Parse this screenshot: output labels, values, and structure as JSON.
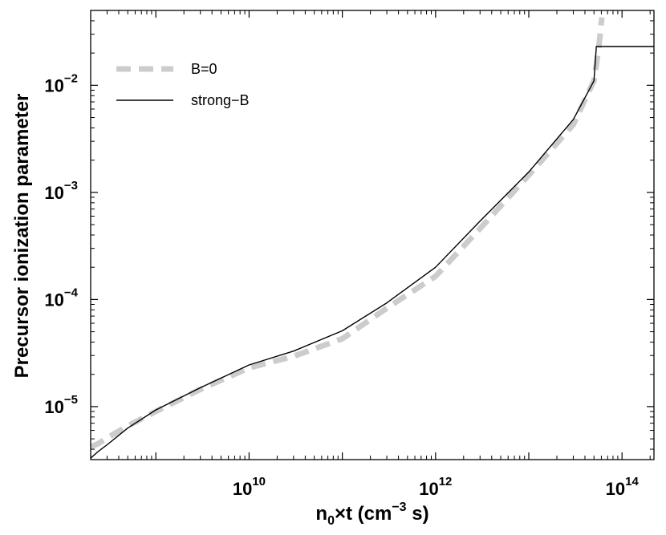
{
  "chart_data": {
    "type": "line",
    "title": "",
    "xlabel": {
      "prefix": "n",
      "sub": "0",
      "mid": "×t (cm",
      "sup": "−3",
      "suffix": " s)"
    },
    "ylabel": "Precursor ionization parameter",
    "xscale": "log",
    "yscale": "log",
    "xlim": [
      200000000.0,
      220000000000000.0
    ],
    "ylim": [
      3.2e-06,
      0.05
    ],
    "grid": false,
    "legend_position": "top-left",
    "xticks": [
      {
        "value": 10000000000.0,
        "base": "10",
        "exp": "10"
      },
      {
        "value": 1000000000000.0,
        "base": "10",
        "exp": "12"
      },
      {
        "value": 100000000000000.0,
        "base": "10",
        "exp": "14"
      }
    ],
    "yticks": [
      {
        "value": 1e-05,
        "base": "10",
        "exp": "−5"
      },
      {
        "value": 0.0001,
        "base": "10",
        "exp": "−4"
      },
      {
        "value": 0.001,
        "base": "10",
        "exp": "−3"
      },
      {
        "value": 0.01,
        "base": "10",
        "exp": "−2"
      }
    ],
    "series": [
      {
        "name": "B=0",
        "color": "#cccccc",
        "style": "dashed-thick",
        "x": [
          200000000.0,
          240000000.0,
          300000000.0,
          500000000.0,
          1000000000.0,
          3000000000.0,
          10000000000.0,
          30000000000.0,
          100000000000.0,
          300000000000.0,
          1000000000000.0,
          3000000000000.0,
          10000000000000.0,
          30000000000000.0,
          50000000000000.0,
          56000000000000.0,
          59000000000000.0,
          60000000000000.0,
          61000000000000.0
        ],
        "y": [
          4.2e-06,
          4.5e-06,
          5.1e-06,
          6.6e-06,
          9e-06,
          1.45e-05,
          2.3e-05,
          2.95e-05,
          4.3e-05,
          8.3e-05,
          0.000165,
          0.00046,
          0.00145,
          0.0043,
          0.011,
          0.022,
          0.033,
          0.039,
          0.043
        ]
      },
      {
        "name": "strong−B",
        "color": "#000000",
        "style": "solid",
        "x": [
          200000000.0,
          240000000.0,
          300000000.0,
          500000000.0,
          1000000000.0,
          3000000000.0,
          10000000000.0,
          30000000000.0,
          100000000000.0,
          300000000000.0,
          1000000000000.0,
          3000000000000.0,
          10000000000000.0,
          30000000000000.0,
          50000000000000.0,
          53000000000000.0,
          60000000000000.0,
          100000000000000.0,
          220000000000000.0
        ],
        "y": [
          3.3e-06,
          3.8e-06,
          4.4e-06,
          6.3e-06,
          9.3e-06,
          1.5e-05,
          2.45e-05,
          3.3e-05,
          5.1e-05,
          9.3e-05,
          0.0002,
          0.00054,
          0.00155,
          0.0048,
          0.011,
          0.023,
          0.023,
          0.023,
          0.023
        ]
      }
    ]
  }
}
